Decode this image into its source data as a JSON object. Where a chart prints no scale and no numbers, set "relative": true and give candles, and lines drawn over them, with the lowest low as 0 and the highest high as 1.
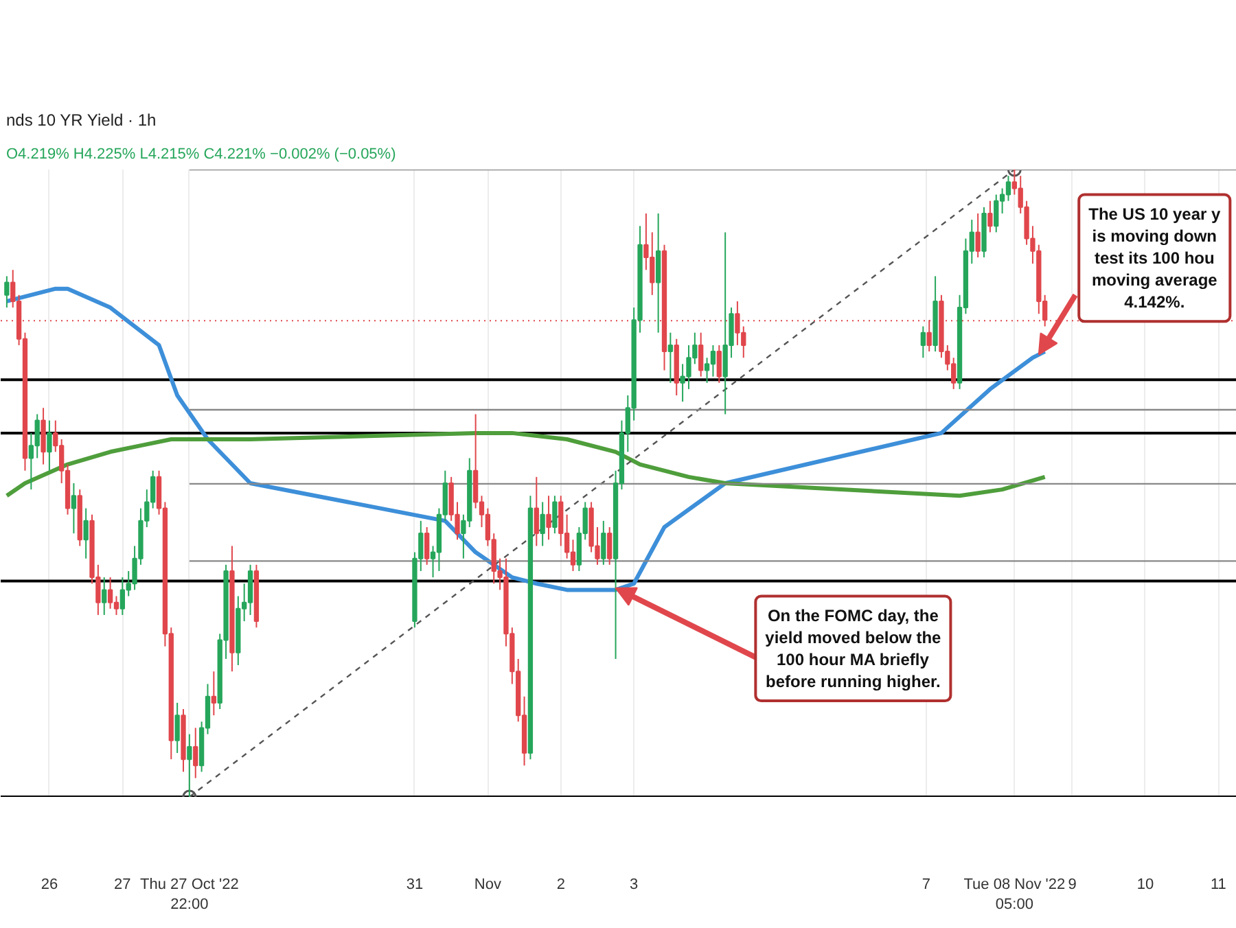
{
  "chart_data": {
    "type": "candlestick",
    "title": "nds 10 YR Yield · 1h",
    "subtitle": "O4.219% H4.225% L4.215% C4.221% −0.002% (−0.05%)",
    "relative": true,
    "x": [
      "2022-10-25T10:00",
      "2022-10-25T12:00",
      "2022-10-25T14:00",
      "2022-10-25T16:00",
      "2022-10-25T18:00",
      "2022-10-25T20:00",
      "2022-10-25T22:00",
      "2022-10-26T00:00",
      "2022-10-26T02:00",
      "2022-10-26T04:00",
      "2022-10-26T06:00",
      "2022-10-26T08:00",
      "2022-10-26T10:00",
      "2022-10-26T12:00",
      "2022-10-26T14:00",
      "2022-10-26T16:00",
      "2022-10-26T18:00",
      "2022-10-26T20:00",
      "2022-10-26T22:00",
      "2022-10-27T00:00",
      "2022-10-27T02:00",
      "2022-10-27T04:00",
      "2022-10-27T06:00",
      "2022-10-27T08:00",
      "2022-10-27T10:00",
      "2022-10-27T12:00",
      "2022-10-27T14:00",
      "2022-10-27T16:00",
      "2022-10-27T18:00",
      "2022-10-27T20:00",
      "2022-10-27T22:00",
      "2022-10-28T00:00",
      "2022-10-28T02:00",
      "2022-10-28T04:00",
      "2022-10-28T06:00",
      "2022-10-28T08:00",
      "2022-10-28T10:00",
      "2022-10-28T12:00",
      "2022-10-28T14:00",
      "2022-10-28T16:00",
      "2022-10-28T18:00",
      "2022-10-28T20:00",
      "2022-10-31T00:00",
      "2022-10-31T02:00",
      "2022-10-31T04:00",
      "2022-10-31T06:00",
      "2022-10-31T08:00",
      "2022-10-31T10:00",
      "2022-10-31T12:00",
      "2022-10-31T14:00",
      "2022-10-31T16:00",
      "2022-10-31T18:00",
      "2022-10-31T20:00",
      "2022-10-31T22:00",
      "2022-11-01T00:00",
      "2022-11-01T02:00",
      "2022-11-01T04:00",
      "2022-11-01T06:00",
      "2022-11-01T08:00",
      "2022-11-01T10:00",
      "2022-11-01T12:00",
      "2022-11-01T14:00",
      "2022-11-01T16:00",
      "2022-11-01T18:00",
      "2022-11-01T20:00",
      "2022-11-01T22:00",
      "2022-11-02T00:00",
      "2022-11-02T02:00",
      "2022-11-02T04:00",
      "2022-11-02T06:00",
      "2022-11-02T08:00",
      "2022-11-02T10:00",
      "2022-11-02T12:00",
      "2022-11-02T14:00",
      "2022-11-02T16:00",
      "2022-11-02T18:00",
      "2022-11-02T20:00",
      "2022-11-02T22:00",
      "2022-11-03T00:00",
      "2022-11-03T02:00",
      "2022-11-03T04:00",
      "2022-11-03T06:00",
      "2022-11-03T08:00",
      "2022-11-03T10:00",
      "2022-11-03T12:00",
      "2022-11-03T14:00",
      "2022-11-03T16:00",
      "2022-11-03T18:00",
      "2022-11-03T20:00",
      "2022-11-03T22:00",
      "2022-11-04T00:00",
      "2022-11-04T02:00",
      "2022-11-04T04:00",
      "2022-11-04T06:00",
      "2022-11-04T08:00",
      "2022-11-04T10:00",
      "2022-11-04T12:00",
      "2022-11-06T23:00",
      "2022-11-07T01:00",
      "2022-11-07T03:00",
      "2022-11-07T05:00",
      "2022-11-07T07:00",
      "2022-11-07T09:00",
      "2022-11-07T11:00",
      "2022-11-07T13:00",
      "2022-11-07T15:00",
      "2022-11-07T17:00",
      "2022-11-07T19:00",
      "2022-11-07T21:00",
      "2022-11-07T23:00",
      "2022-11-08T01:00",
      "2022-11-08T03:00",
      "2022-11-08T05:00",
      "2022-11-08T07:00",
      "2022-11-08T09:00",
      "2022-11-08T11:00",
      "2022-11-08T13:00",
      "2022-11-08T15:00"
    ],
    "ohlc": [
      [
        0.8,
        0.83,
        0.78,
        0.82
      ],
      [
        0.82,
        0.84,
        0.78,
        0.79
      ],
      [
        0.79,
        0.8,
        0.72,
        0.73
      ],
      [
        0.73,
        0.74,
        0.52,
        0.54
      ],
      [
        0.54,
        0.58,
        0.49,
        0.56
      ],
      [
        0.56,
        0.61,
        0.54,
        0.6
      ],
      [
        0.6,
        0.62,
        0.53,
        0.55
      ],
      [
        0.55,
        0.6,
        0.52,
        0.58
      ],
      [
        0.58,
        0.6,
        0.55,
        0.56
      ],
      [
        0.56,
        0.57,
        0.5,
        0.52
      ],
      [
        0.52,
        0.53,
        0.45,
        0.46
      ],
      [
        0.46,
        0.5,
        0.42,
        0.48
      ],
      [
        0.48,
        0.49,
        0.4,
        0.41
      ],
      [
        0.41,
        0.46,
        0.38,
        0.44
      ],
      [
        0.44,
        0.45,
        0.34,
        0.35
      ],
      [
        0.35,
        0.37,
        0.29,
        0.31
      ],
      [
        0.31,
        0.35,
        0.29,
        0.33
      ],
      [
        0.33,
        0.35,
        0.3,
        0.31
      ],
      [
        0.31,
        0.32,
        0.29,
        0.3
      ],
      [
        0.3,
        0.35,
        0.29,
        0.33
      ],
      [
        0.33,
        0.36,
        0.32,
        0.34
      ],
      [
        0.34,
        0.4,
        0.33,
        0.38
      ],
      [
        0.38,
        0.46,
        0.37,
        0.44
      ],
      [
        0.44,
        0.49,
        0.43,
        0.47
      ],
      [
        0.47,
        0.52,
        0.46,
        0.51
      ],
      [
        0.51,
        0.52,
        0.45,
        0.46
      ],
      [
        0.46,
        0.47,
        0.24,
        0.26
      ],
      [
        0.26,
        0.27,
        0.06,
        0.09
      ],
      [
        0.09,
        0.15,
        0.07,
        0.13
      ],
      [
        0.13,
        0.14,
        0.04,
        0.06
      ],
      [
        0.06,
        0.1,
        0.0,
        0.08
      ],
      [
        0.08,
        0.11,
        0.03,
        0.05
      ],
      [
        0.05,
        0.12,
        0.04,
        0.11
      ],
      [
        0.11,
        0.18,
        0.1,
        0.16
      ],
      [
        0.16,
        0.2,
        0.13,
        0.15
      ],
      [
        0.15,
        0.26,
        0.14,
        0.25
      ],
      [
        0.25,
        0.37,
        0.22,
        0.36
      ],
      [
        0.36,
        0.4,
        0.2,
        0.23
      ],
      [
        0.23,
        0.32,
        0.21,
        0.3
      ],
      [
        0.3,
        0.34,
        0.28,
        0.31
      ],
      [
        0.31,
        0.37,
        0.29,
        0.36
      ],
      [
        0.36,
        0.37,
        0.27,
        0.28
      ],
      [
        0.28,
        0.39,
        0.27,
        0.38
      ],
      [
        0.38,
        0.44,
        0.36,
        0.42
      ],
      [
        0.42,
        0.43,
        0.37,
        0.38
      ],
      [
        0.38,
        0.4,
        0.35,
        0.39
      ],
      [
        0.39,
        0.46,
        0.36,
        0.45
      ],
      [
        0.45,
        0.52,
        0.44,
        0.5
      ],
      [
        0.5,
        0.51,
        0.44,
        0.45
      ],
      [
        0.45,
        0.47,
        0.41,
        0.42
      ],
      [
        0.42,
        0.45,
        0.38,
        0.44
      ],
      [
        0.44,
        0.54,
        0.43,
        0.52
      ],
      [
        0.52,
        0.61,
        0.46,
        0.47
      ],
      [
        0.47,
        0.48,
        0.43,
        0.45
      ],
      [
        0.45,
        0.46,
        0.4,
        0.41
      ],
      [
        0.41,
        0.42,
        0.34,
        0.36
      ],
      [
        0.36,
        0.38,
        0.33,
        0.35
      ],
      [
        0.35,
        0.38,
        0.24,
        0.26
      ],
      [
        0.26,
        0.27,
        0.18,
        0.2
      ],
      [
        0.2,
        0.22,
        0.12,
        0.13
      ],
      [
        0.13,
        0.16,
        0.05,
        0.07
      ],
      [
        0.07,
        0.48,
        0.06,
        0.46
      ],
      [
        0.46,
        0.51,
        0.4,
        0.42
      ],
      [
        0.42,
        0.47,
        0.4,
        0.45
      ],
      [
        0.45,
        0.48,
        0.41,
        0.43
      ],
      [
        0.43,
        0.48,
        0.42,
        0.47
      ],
      [
        0.47,
        0.48,
        0.4,
        0.42
      ],
      [
        0.42,
        0.45,
        0.38,
        0.39
      ],
      [
        0.39,
        0.41,
        0.36,
        0.37
      ],
      [
        0.37,
        0.43,
        0.36,
        0.42
      ],
      [
        0.42,
        0.47,
        0.41,
        0.46
      ],
      [
        0.46,
        0.47,
        0.39,
        0.4
      ],
      [
        0.4,
        0.43,
        0.37,
        0.38
      ],
      [
        0.38,
        0.44,
        0.37,
        0.42
      ],
      [
        0.42,
        0.43,
        0.37,
        0.38
      ],
      [
        0.38,
        0.52,
        0.22,
        0.5
      ],
      [
        0.5,
        0.6,
        0.49,
        0.58
      ],
      [
        0.58,
        0.64,
        0.55,
        0.62
      ],
      [
        0.62,
        0.78,
        0.6,
        0.76
      ],
      [
        0.76,
        0.91,
        0.74,
        0.88
      ],
      [
        0.88,
        0.93,
        0.84,
        0.86
      ],
      [
        0.86,
        0.9,
        0.8,
        0.82
      ],
      [
        0.82,
        0.93,
        0.74,
        0.87
      ],
      [
        0.87,
        0.88,
        0.68,
        0.71
      ],
      [
        0.71,
        0.74,
        0.66,
        0.72
      ],
      [
        0.72,
        0.73,
        0.64,
        0.66
      ],
      [
        0.66,
        0.69,
        0.63,
        0.67
      ],
      [
        0.67,
        0.72,
        0.65,
        0.7
      ],
      [
        0.7,
        0.74,
        0.69,
        0.72
      ],
      [
        0.72,
        0.74,
        0.67,
        0.68
      ],
      [
        0.68,
        0.7,
        0.66,
        0.69
      ],
      [
        0.69,
        0.72,
        0.67,
        0.71
      ],
      [
        0.71,
        0.72,
        0.66,
        0.67
      ],
      [
        0.67,
        0.9,
        0.61,
        0.72
      ],
      [
        0.72,
        0.78,
        0.7,
        0.77
      ],
      [
        0.77,
        0.79,
        0.72,
        0.74
      ],
      [
        0.74,
        0.75,
        0.7,
        0.72
      ],
      [
        0.72,
        0.75,
        0.7,
        0.74
      ],
      [
        0.74,
        0.76,
        0.71,
        0.72
      ],
      [
        0.72,
        0.83,
        0.71,
        0.79
      ],
      [
        0.79,
        0.8,
        0.7,
        0.71
      ],
      [
        0.71,
        0.72,
        0.68,
        0.69
      ],
      [
        0.69,
        0.7,
        0.65,
        0.66
      ],
      [
        0.66,
        0.8,
        0.65,
        0.78
      ],
      [
        0.78,
        0.89,
        0.77,
        0.87
      ],
      [
        0.87,
        0.92,
        0.85,
        0.9
      ],
      [
        0.9,
        0.93,
        0.86,
        0.87
      ],
      [
        0.87,
        0.94,
        0.86,
        0.93
      ],
      [
        0.93,
        0.95,
        0.9,
        0.91
      ],
      [
        0.91,
        0.96,
        0.9,
        0.95
      ],
      [
        0.95,
        0.97,
        0.93,
        0.96
      ],
      [
        0.96,
        0.99,
        0.95,
        0.98
      ],
      [
        0.98,
        1.0,
        0.96,
        0.97
      ],
      [
        0.97,
        0.99,
        0.93,
        0.94
      ],
      [
        0.94,
        0.95,
        0.88,
        0.89
      ],
      [
        0.89,
        0.91,
        0.85,
        0.87
      ],
      [
        0.87,
        0.88,
        0.77,
        0.79
      ],
      [
        0.79,
        0.8,
        0.75,
        0.76
      ]
    ],
    "colors": [
      "#26a65b",
      "#e0474c",
      "#e0474c",
      "#e0474c",
      "#26a65b",
      "#26a65b",
      "#e0474c",
      "#26a65b",
      "#e0474c",
      "#e0474c",
      "#e0474c",
      "#26a65b",
      "#e0474c",
      "#26a65b",
      "#e0474c",
      "#e0474c",
      "#26a65b",
      "#e0474c",
      "#e0474c",
      "#26a65b",
      "#26a65b",
      "#26a65b",
      "#26a65b",
      "#26a65b",
      "#26a65b",
      "#e0474c",
      "#e0474c",
      "#e0474c",
      "#26a65b",
      "#e0474c",
      "#26a65b",
      "#e0474c",
      "#26a65b",
      "#26a65b",
      "#e0474c",
      "#26a65b",
      "#26a65b",
      "#e0474c",
      "#26a65b",
      "#26a65b",
      "#26a65b",
      "#e0474c",
      "#26a65b",
      "#26a65b",
      "#e0474c",
      "#26a65b",
      "#26a65b",
      "#26a65b",
      "#e0474c",
      "#e0474c",
      "#26a65b",
      "#26a65b",
      "#e0474c",
      "#e0474c",
      "#e0474c",
      "#e0474c",
      "#e0474c",
      "#e0474c",
      "#e0474c",
      "#e0474c",
      "#e0474c",
      "#26a65b",
      "#e0474c",
      "#26a65b",
      "#e0474c",
      "#26a65b",
      "#e0474c",
      "#e0474c",
      "#e0474c",
      "#26a65b",
      "#26a65b",
      "#e0474c",
      "#e0474c",
      "#26a65b",
      "#e0474c",
      "#26a65b",
      "#26a65b",
      "#26a65b",
      "#26a65b",
      "#26a65b",
      "#e0474c",
      "#e0474c",
      "#26a65b",
      "#e0474c",
      "#26a65b",
      "#e0474c",
      "#26a65b",
      "#26a65b",
      "#26a65b",
      "#e0474c",
      "#26a65b",
      "#26a65b",
      "#e0474c",
      "#26a65b",
      "#26a65b",
      "#e0474c",
      "#e0474c",
      "#26a65b",
      "#e0474c",
      "#26a65b",
      "#e0474c",
      "#e0474c",
      "#e0474c",
      "#26a65b",
      "#26a65b",
      "#26a65b",
      "#e0474c",
      "#26a65b",
      "#e0474c",
      "#26a65b",
      "#26a65b",
      "#26a65b",
      "#e0474c",
      "#e0474c",
      "#e0474c",
      "#e0474c",
      "#e0474c",
      "#e0474c"
    ],
    "xlim": [
      "2022-10-25T08:00",
      "2022-11-11T06:00"
    ],
    "xticks": [
      {
        "value": "2022-10-26",
        "label": "26"
      },
      {
        "value": "2022-10-27",
        "label": "27"
      },
      {
        "value": "2022-10-27T22:00",
        "label": "Thu 27 Oct '22   22:00"
      },
      {
        "value": "2022-10-31",
        "label": "31"
      },
      {
        "value": "2022-11-01",
        "label": "Nov"
      },
      {
        "value": "2022-11-02",
        "label": "2"
      },
      {
        "value": "2022-11-03",
        "label": "3"
      },
      {
        "value": "2022-11-07",
        "label": "7"
      },
      {
        "value": "2022-11-08T05:00",
        "label": "Tue 08 Nov '22   05:00"
      },
      {
        "value": "2022-11-09",
        "label": "9"
      },
      {
        "value": "2022-11-10",
        "label": "10"
      },
      {
        "value": "2022-11-11",
        "label": "11"
      }
    ],
    "grid": "x",
    "ref_lines": [
      {
        "axis": "y",
        "value": 0,
        "color": "#000000"
      },
      {
        "axis": "y",
        "value": 0.344,
        "color": "#000000"
      },
      {
        "axis": "y",
        "value": 0.58,
        "color": "#000000"
      },
      {
        "axis": "y",
        "value": 0.665,
        "color": "#000000"
      },
      {
        "axis": "y",
        "value": 0.759,
        "color": "#e0474c",
        "line_style": "dotted"
      }
    ],
    "series": [
      {
        "type": "line",
        "color": "#3d8fd9",
        "x": [
          "2022-10-25T10:00",
          "2022-10-26T02:00",
          "2022-10-26T06:00",
          "2022-10-26T20:00",
          "2022-10-27T12:00",
          "2022-10-27T18:00",
          "2022-10-28T04:00",
          "2022-10-28T18:00",
          "2022-10-31T10:00",
          "2022-10-31T20:00",
          "2022-11-01T08:00",
          "2022-11-01T16:00",
          "2022-11-02T02:00",
          "2022-11-02T18:00",
          "2022-11-03T00:00",
          "2022-11-03T10:00",
          "2022-11-04T06:00",
          "2022-11-07T05:00",
          "2022-11-07T21:00",
          "2022-11-08T11:00",
          "2022-11-08T15:00"
        ],
        "values": [
          0.79,
          0.81,
          0.81,
          0.78,
          0.72,
          0.64,
          0.57,
          0.5,
          0.44,
          0.39,
          0.35,
          0.34,
          0.33,
          0.33,
          0.34,
          0.43,
          0.5,
          0.58,
          0.65,
          0.7,
          0.71
        ]
      },
      {
        "type": "line",
        "color": "#4f9e3c",
        "x": [
          "2022-10-25T10:00",
          "2022-10-25T16:00",
          "2022-10-26T06:00",
          "2022-10-26T20:00",
          "2022-10-27T06:00",
          "2022-10-27T16:00",
          "2022-10-28T04:00",
          "2022-10-28T18:00",
          "2022-10-31T20:00",
          "2022-11-01T08:00",
          "2022-11-02T02:00",
          "2022-11-02T18:00",
          "2022-11-03T02:00",
          "2022-11-03T18:00",
          "2022-11-04T06:00",
          "2022-11-07T11:00",
          "2022-11-08T01:00",
          "2022-11-08T15:00"
        ],
        "values": [
          0.48,
          0.5,
          0.53,
          0.55,
          0.56,
          0.57,
          0.57,
          0.57,
          0.58,
          0.58,
          0.57,
          0.55,
          0.53,
          0.51,
          0.5,
          0.48,
          0.49,
          0.51
        ]
      },
      {
        "type": "line",
        "color": "#555555",
        "line_style": "dashed",
        "marker": "circle",
        "x": [
          "2022-10-27T22:00",
          "2022-11-08T05:00"
        ],
        "values": [
          0,
          1
        ]
      },
      {
        "type": "line",
        "color": "#888888",
        "x": [
          "2022-10-27T22:00",
          "2022-11-11T06:00"
        ],
        "values": [
          1,
          1
        ]
      },
      {
        "type": "line",
        "color": "#888888",
        "x": [
          "2022-10-27T22:00",
          "2022-11-11T06:00"
        ],
        "values": [
          0.617,
          0.617
        ]
      },
      {
        "type": "line",
        "color": "#888888",
        "x": [
          "2022-10-27T22:00",
          "2022-11-11T06:00"
        ],
        "values": [
          0.499,
          0.499
        ]
      },
      {
        "type": "line",
        "color": "#888888",
        "x": [
          "2022-10-27T22:00",
          "2022-11-11T06:00"
        ],
        "values": [
          0.376,
          0.376
        ]
      }
    ],
    "annotations": [
      {
        "text": "The US 10 year y\nis moving down\ntest its 100 hou\nmoving average\n4.142%.",
        "x": "2022-11-08T13:00",
        "y": 0.705
      },
      {
        "text": "On the FOMC day, the\nyield moved below the\n100 hour MA briefly\nbefore running higher.",
        "x": "2022-11-02T18:00",
        "y": 0.333
      }
    ]
  }
}
